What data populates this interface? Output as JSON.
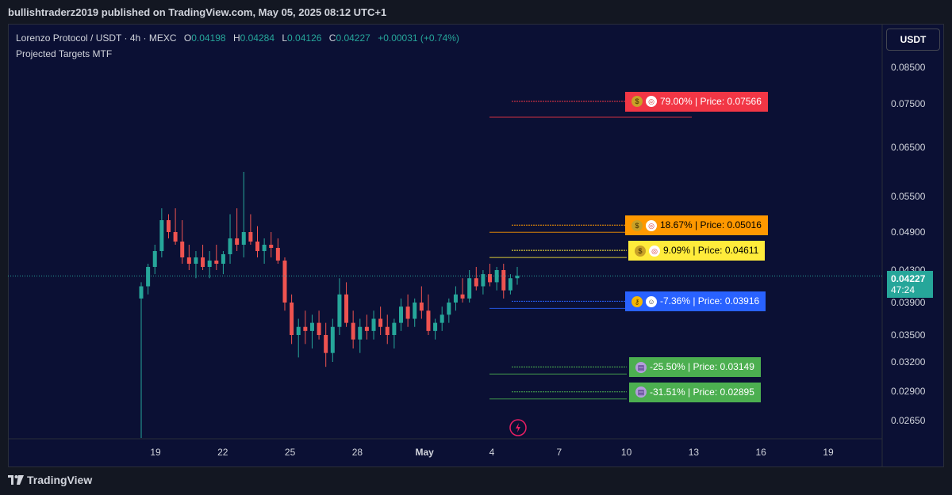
{
  "header": {
    "publish_line": "bullishtraderz2019 published on TradingView.com, May 05, 2025 08:12 UTC+1"
  },
  "legend": {
    "symbol": "Lorenzo Protocol / USDT · 4h · MEXC",
    "o_label": "O",
    "o_value": "0.04198",
    "h_label": "H",
    "h_value": "0.04284",
    "l_label": "L",
    "l_value": "0.04126",
    "c_label": "C",
    "c_value": "0.04227",
    "change": "+0.00031 (+0.74%)",
    "indicator": "Projected Targets MTF"
  },
  "price_scale": {
    "currency": "USDT",
    "ticks": [
      "0.08500",
      "0.07500",
      "0.06500",
      "0.05500",
      "0.04900",
      "0.04300",
      "0.03900",
      "0.03500",
      "0.03200",
      "0.02900",
      "0.02650"
    ],
    "current_price": "0.04227",
    "countdown": "47:24"
  },
  "time_scale": {
    "ticks": [
      "19",
      "22",
      "25",
      "28",
      "May",
      "4",
      "7",
      "10",
      "13",
      "16",
      "19"
    ]
  },
  "targets": [
    {
      "text": "79.00% | Price: 0.07566",
      "color": "#f23645",
      "text_color": "#ffffff",
      "icons": [
        "money-bag-icon",
        "target-icon"
      ],
      "price": 0.07566
    },
    {
      "text": "18.67% | Price: 0.05016",
      "color": "#ff9800",
      "text_color": "#000000",
      "icons": [
        "money-bag-icon",
        "target-icon"
      ],
      "price": 0.05016
    },
    {
      "text": "9.09% | Price: 0.04611",
      "color": "#ffeb3b",
      "text_color": "#000000",
      "icons": [
        "money-bag-icon",
        "target-icon"
      ],
      "price": 0.04611
    },
    {
      "text": "-7.36% | Price: 0.03916",
      "color": "#2962ff",
      "text_color": "#ffffff",
      "icons": [
        "key-icon",
        "ghost-icon"
      ],
      "price": 0.03916
    },
    {
      "text": "-25.50% | Price: 0.03149",
      "color": "#4caf50",
      "text_color": "#ffffff",
      "icons": [
        "bucket-icon"
      ],
      "price": 0.03149
    },
    {
      "text": "-31.51% | Price: 0.02895",
      "color": "#4caf50",
      "text_color": "#ffffff",
      "icons": [
        "bucket-icon"
      ],
      "price": 0.02895
    }
  ],
  "chart_data": {
    "type": "candlestick",
    "symbol": "Lorenzo Protocol / USDT",
    "interval": "4h",
    "exchange": "MEXC",
    "x": [
      "19",
      "22",
      "25",
      "28",
      "May",
      "4",
      "7",
      "10",
      "13",
      "16",
      "19"
    ],
    "ylim": [
      0.0255,
      0.09
    ],
    "series": [
      {
        "name": "candles",
        "values": [
          [
            0.0395,
            0.0415,
            0.025,
            0.041
          ],
          [
            0.041,
            0.044,
            0.04,
            0.0435
          ],
          [
            0.0435,
            0.047,
            0.0425,
            0.046
          ],
          [
            0.046,
            0.053,
            0.045,
            0.051
          ],
          [
            0.051,
            0.052,
            0.048,
            0.049
          ],
          [
            0.049,
            0.053,
            0.047,
            0.0475
          ],
          [
            0.0475,
            0.051,
            0.044,
            0.045
          ],
          [
            0.045,
            0.047,
            0.043,
            0.044
          ],
          [
            0.044,
            0.046,
            0.042,
            0.045
          ],
          [
            0.045,
            0.047,
            0.043,
            0.0435
          ],
          [
            0.0435,
            0.046,
            0.042,
            0.0445
          ],
          [
            0.0445,
            0.047,
            0.043,
            0.044
          ],
          [
            0.044,
            0.046,
            0.0425,
            0.0455
          ],
          [
            0.0455,
            0.052,
            0.044,
            0.048
          ],
          [
            0.048,
            0.053,
            0.046,
            0.047
          ],
          [
            0.047,
            0.06,
            0.045,
            0.049
          ],
          [
            0.049,
            0.052,
            0.047,
            0.0475
          ],
          [
            0.0475,
            0.05,
            0.045,
            0.046
          ],
          [
            0.046,
            0.048,
            0.044,
            0.047
          ],
          [
            0.047,
            0.049,
            0.045,
            0.0465
          ],
          [
            0.0465,
            0.048,
            0.044,
            0.0445
          ],
          [
            0.0445,
            0.045,
            0.038,
            0.039
          ],
          [
            0.039,
            0.04,
            0.034,
            0.035
          ],
          [
            0.035,
            0.037,
            0.0325,
            0.036
          ],
          [
            0.036,
            0.038,
            0.034,
            0.0355
          ],
          [
            0.0355,
            0.0375,
            0.0335,
            0.0365
          ],
          [
            0.0365,
            0.038,
            0.0345,
            0.035
          ],
          [
            0.035,
            0.0365,
            0.0315,
            0.033
          ],
          [
            0.033,
            0.037,
            0.032,
            0.036
          ],
          [
            0.036,
            0.042,
            0.035,
            0.04
          ],
          [
            0.04,
            0.0415,
            0.036,
            0.0365
          ],
          [
            0.0365,
            0.038,
            0.0335,
            0.0345
          ],
          [
            0.0345,
            0.037,
            0.033,
            0.036
          ],
          [
            0.036,
            0.0375,
            0.0345,
            0.0355
          ],
          [
            0.0355,
            0.038,
            0.0345,
            0.037
          ],
          [
            0.037,
            0.0385,
            0.035,
            0.036
          ],
          [
            0.036,
            0.0375,
            0.034,
            0.035
          ],
          [
            0.035,
            0.037,
            0.0335,
            0.0365
          ],
          [
            0.0365,
            0.0395,
            0.0355,
            0.0385
          ],
          [
            0.0385,
            0.04,
            0.036,
            0.037
          ],
          [
            0.037,
            0.0395,
            0.036,
            0.039
          ],
          [
            0.039,
            0.041,
            0.037,
            0.038
          ],
          [
            0.038,
            0.04,
            0.035,
            0.0355
          ],
          [
            0.0355,
            0.037,
            0.0345,
            0.0365
          ],
          [
            0.0365,
            0.0385,
            0.0355,
            0.0375
          ],
          [
            0.0375,
            0.0395,
            0.0365,
            0.039
          ],
          [
            0.039,
            0.041,
            0.038,
            0.04
          ],
          [
            0.04,
            0.042,
            0.039,
            0.0395
          ],
          [
            0.0395,
            0.043,
            0.039,
            0.042
          ],
          [
            0.042,
            0.0435,
            0.0405,
            0.041
          ],
          [
            0.041,
            0.043,
            0.04,
            0.0425
          ],
          [
            0.0425,
            0.044,
            0.041,
            0.0415
          ],
          [
            0.0415,
            0.0435,
            0.0405,
            0.043
          ],
          [
            0.043,
            0.044,
            0.0395,
            0.0405
          ],
          [
            0.0405,
            0.0425,
            0.04,
            0.042
          ],
          [
            0.042,
            0.0435,
            0.0412,
            0.0423
          ]
        ]
      }
    ],
    "current_price": 0.04227,
    "targets": [
      0.07566,
      0.05016,
      0.04611,
      0.03916,
      0.03149,
      0.02895
    ]
  }
}
